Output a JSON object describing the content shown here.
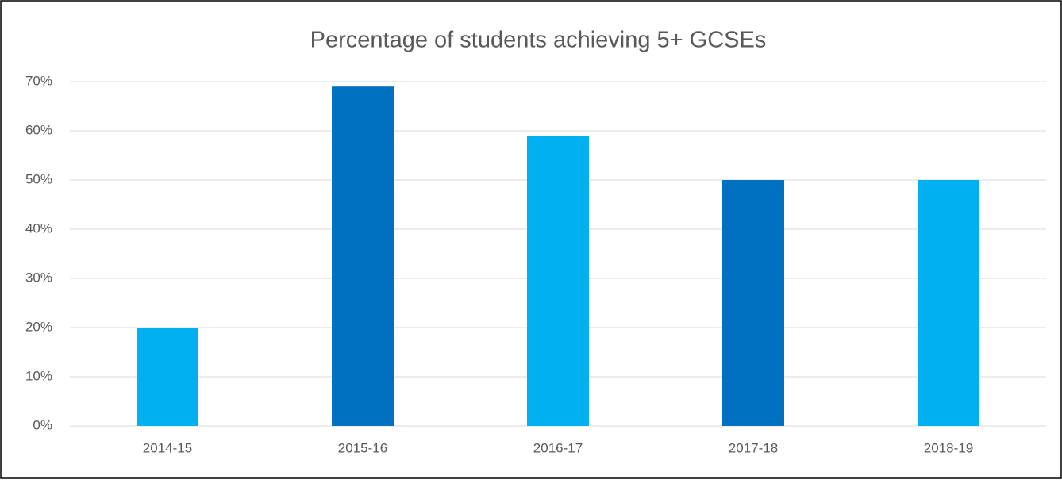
{
  "chart_data": {
    "type": "bar",
    "title": "Percentage of students achieving 5+ GCSEs",
    "categories": [
      "2014-15",
      "2015-16",
      "2016-17",
      "2017-18",
      "2018-19"
    ],
    "values": [
      20,
      69,
      59,
      50,
      50
    ],
    "colors": [
      "#00b0f0",
      "#0070c0",
      "#00b0f0",
      "#0070c0",
      "#00b0f0"
    ],
    "ylim": [
      0,
      70
    ],
    "yticks": [
      {
        "value": 0,
        "label": "0%"
      },
      {
        "value": 10,
        "label": "10%"
      },
      {
        "value": 20,
        "label": "20%"
      },
      {
        "value": 30,
        "label": "30%"
      },
      {
        "value": 40,
        "label": "40%"
      },
      {
        "value": 50,
        "label": "50%"
      },
      {
        "value": 60,
        "label": "60%"
      },
      {
        "value": 70,
        "label": "70%"
      }
    ],
    "grid": true
  }
}
